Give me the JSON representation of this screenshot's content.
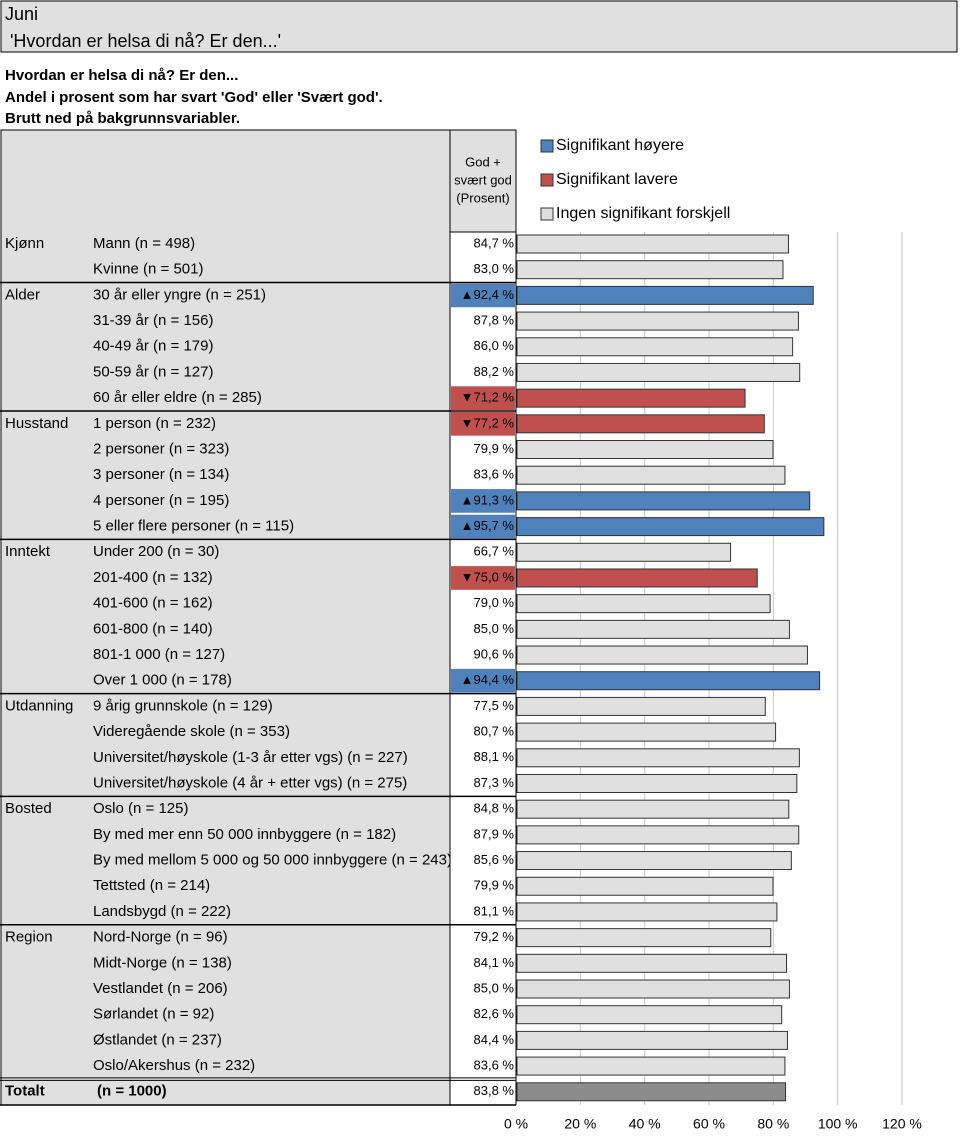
{
  "header": {
    "title_lines": [
      "Juni",
      "'Hvordan er helsa di nå? Er den...'"
    ]
  },
  "description": [
    "Hvordan er helsa di nå? Er den...",
    "Andel i prosent som har svart 'God' eller 'Svært god'.",
    "Brutt ned på bakgrunnsvariabler."
  ],
  "column_header": [
    "God +",
    "svært god",
    "(Prosent)"
  ],
  "chart_data": {
    "type": "bar",
    "orientation": "horizontal",
    "legend": [
      {
        "name": "Signifikant høyere",
        "color": "#4f81bd"
      },
      {
        "name": "Signifikant lavere",
        "color": "#c0504d"
      },
      {
        "name": "Ingen signifikant forskjell",
        "color": "#e0e0e0"
      }
    ],
    "xlim": [
      0,
      120
    ],
    "xticks": [
      {
        "value": 0,
        "label": "0 %"
      },
      {
        "value": 20,
        "label": "20 %"
      },
      {
        "value": 40,
        "label": "40 %"
      },
      {
        "value": 60,
        "label": "60 %"
      },
      {
        "value": 80,
        "label": "80 %"
      },
      {
        "value": 100,
        "label": "100 %"
      },
      {
        "value": 120,
        "label": "120 %"
      }
    ],
    "grid": true,
    "groups": [
      {
        "name": "Kjønn",
        "rows": [
          {
            "label": "Mann (n = 498)",
            "value": 84.7,
            "value_label": "84,7 %",
            "color": "#e0e0e0"
          },
          {
            "label": "Kvinne (n = 501)",
            "value": 83.0,
            "value_label": "83,0 %",
            "color": "#e0e0e0"
          }
        ]
      },
      {
        "name": "Alder",
        "rows": [
          {
            "label": "30 år eller yngre (n = 251)",
            "value": 92.4,
            "value_label": "▲92,4 %",
            "color": "#4f81bd"
          },
          {
            "label": "31-39 år (n = 156)",
            "value": 87.8,
            "value_label": "87,8 %",
            "color": "#e0e0e0"
          },
          {
            "label": "40-49 år (n = 179)",
            "value": 86.0,
            "value_label": "86,0 %",
            "color": "#e0e0e0"
          },
          {
            "label": "50-59 år (n = 127)",
            "value": 88.2,
            "value_label": "88,2 %",
            "color": "#e0e0e0"
          },
          {
            "label": "60 år eller eldre (n = 285)",
            "value": 71.2,
            "value_label": "▼71,2 %",
            "color": "#c0504d"
          }
        ]
      },
      {
        "name": "Husstand",
        "rows": [
          {
            "label": "1 person (n = 232)",
            "value": 77.2,
            "value_label": "▼77,2 %",
            "color": "#c0504d"
          },
          {
            "label": "2 personer (n = 323)",
            "value": 79.9,
            "value_label": "79,9 %",
            "color": "#e0e0e0"
          },
          {
            "label": "3 personer (n = 134)",
            "value": 83.6,
            "value_label": "83,6 %",
            "color": "#e0e0e0"
          },
          {
            "label": "4 personer (n = 195)",
            "value": 91.3,
            "value_label": "▲91,3 %",
            "color": "#4f81bd"
          },
          {
            "label": "5 eller flere personer (n = 115)",
            "value": 95.7,
            "value_label": "▲95,7 %",
            "color": "#4f81bd"
          }
        ]
      },
      {
        "name": "Inntekt",
        "rows": [
          {
            "label": "Under 200 (n = 30)",
            "value": 66.7,
            "value_label": "66,7 %",
            "color": "#e0e0e0"
          },
          {
            "label": "201-400 (n = 132)",
            "value": 75.0,
            "value_label": "▼75,0 %",
            "color": "#c0504d"
          },
          {
            "label": "401-600 (n = 162)",
            "value": 79.0,
            "value_label": "79,0 %",
            "color": "#e0e0e0"
          },
          {
            "label": "601-800 (n = 140)",
            "value": 85.0,
            "value_label": "85,0 %",
            "color": "#e0e0e0"
          },
          {
            "label": "801-1 000 (n = 127)",
            "value": 90.6,
            "value_label": "90,6 %",
            "color": "#e0e0e0"
          },
          {
            "label": "Over 1 000 (n = 178)",
            "value": 94.4,
            "value_label": "▲94,4 %",
            "color": "#4f81bd"
          }
        ]
      },
      {
        "name": "Utdanning",
        "rows": [
          {
            "label": "9 årig grunnskole (n = 129)",
            "value": 77.5,
            "value_label": "77,5 %",
            "color": "#e0e0e0"
          },
          {
            "label": "Videregående skole (n = 353)",
            "value": 80.7,
            "value_label": "80,7 %",
            "color": "#e0e0e0"
          },
          {
            "label": "Universitet/høyskole (1-3 år etter vgs) (n = 227)",
            "value": 88.1,
            "value_label": "88,1 %",
            "color": "#e0e0e0"
          },
          {
            "label": "Universitet/høyskole (4 år + etter vgs) (n = 275)",
            "value": 87.3,
            "value_label": "87,3 %",
            "color": "#e0e0e0"
          }
        ]
      },
      {
        "name": "Bosted",
        "rows": [
          {
            "label": "Oslo (n = 125)",
            "value": 84.8,
            "value_label": "84,8 %",
            "color": "#e0e0e0"
          },
          {
            "label": "By med mer enn 50 000 innbyggere (n = 182)",
            "value": 87.9,
            "value_label": "87,9 %",
            "color": "#e0e0e0"
          },
          {
            "label": "By med mellom 5 000 og 50 000 innbyggere (n = 243)",
            "value": 85.6,
            "value_label": "85,6 %",
            "color": "#e0e0e0"
          },
          {
            "label": "Tettsted (n = 214)",
            "value": 79.9,
            "value_label": "79,9 %",
            "color": "#e0e0e0"
          },
          {
            "label": "Landsbygd (n = 222)",
            "value": 81.1,
            "value_label": "81,1 %",
            "color": "#e0e0e0"
          }
        ]
      },
      {
        "name": "Region",
        "rows": [
          {
            "label": "Nord-Norge (n = 96)",
            "value": 79.2,
            "value_label": "79,2 %",
            "color": "#e0e0e0"
          },
          {
            "label": "Midt-Norge (n = 138)",
            "value": 84.1,
            "value_label": "84,1 %",
            "color": "#e0e0e0"
          },
          {
            "label": "Vestlandet (n = 206)",
            "value": 85.0,
            "value_label": "85,0 %",
            "color": "#e0e0e0"
          },
          {
            "label": "Sørlandet (n = 92)",
            "value": 82.6,
            "value_label": "82,6 %",
            "color": "#e0e0e0"
          },
          {
            "label": "Østlandet (n = 237)",
            "value": 84.4,
            "value_label": "84,4 %",
            "color": "#e0e0e0"
          },
          {
            "label": "Oslo/Akershus (n = 232)",
            "value": 83.6,
            "value_label": "83,6 %",
            "color": "#e0e0e0"
          }
        ]
      }
    ],
    "total": {
      "name": "Totalt",
      "label": "(n = 1000)",
      "value": 83.8,
      "value_label": "83,8 %",
      "color": "#8c8c8c"
    }
  }
}
